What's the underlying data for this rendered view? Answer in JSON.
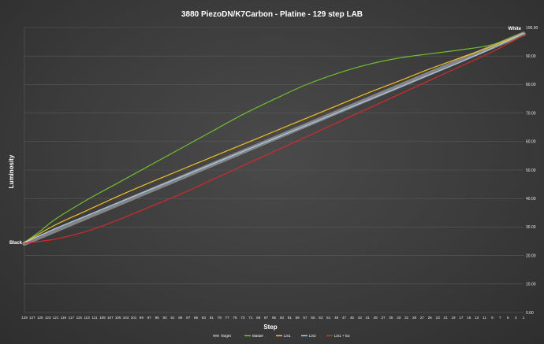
{
  "chart_data": {
    "type": "line",
    "title": "3880 PiezoDN/K7Carbon - Platine - 129 step LAB",
    "xlabel": "Step",
    "ylabel": "Luminosity",
    "ylim": [
      0,
      100
    ],
    "xlim": [
      129,
      1
    ],
    "x_reversed": true,
    "grid": true,
    "legend_position": "bottom",
    "y_ticks": [
      "0.00",
      "10.00",
      "20.00",
      "30.00",
      "40.00",
      "50.00",
      "60.00",
      "70.00",
      "80.00",
      "90.00",
      "100.00"
    ],
    "x_ticks": [
      "129",
      "127",
      "125",
      "123",
      "121",
      "119",
      "117",
      "115",
      "113",
      "111",
      "109",
      "107",
      "105",
      "103",
      "101",
      "99",
      "97",
      "95",
      "93",
      "91",
      "89",
      "87",
      "85",
      "83",
      "81",
      "79",
      "77",
      "75",
      "73",
      "71",
      "69",
      "67",
      "65",
      "63",
      "61",
      "59",
      "57",
      "55",
      "53",
      "51",
      "49",
      "47",
      "45",
      "43",
      "41",
      "39",
      "37",
      "35",
      "33",
      "31",
      "29",
      "27",
      "25",
      "23",
      "21",
      "19",
      "17",
      "15",
      "13",
      "11",
      "9",
      "7",
      "5",
      "3",
      "1"
    ],
    "annotations": [
      {
        "text": "Black",
        "x": 129,
        "y": 24.5
      },
      {
        "text": "White",
        "x": 1,
        "y": 98
      }
    ],
    "series": [
      {
        "name": "Target",
        "color": "#8c8c8c",
        "width": 5.5,
        "x": [
          129,
          1
        ],
        "y": [
          24.2,
          97.8
        ]
      },
      {
        "name": "Master",
        "color": "#6fbf2a",
        "width": 1.2,
        "x": [
          129,
          125,
          121,
          113,
          105,
          97,
          89,
          81,
          73,
          65,
          57,
          49,
          41,
          33,
          25,
          17,
          9,
          1
        ],
        "y": [
          24.6,
          28.5,
          32.8,
          39.5,
          45.5,
          51.5,
          57.5,
          63.5,
          69.5,
          74.8,
          79.8,
          83.8,
          87.0,
          89.3,
          90.8,
          92.2,
          94.0,
          98.0
        ]
      },
      {
        "name": "Lin1",
        "color": "#f0c020",
        "width": 1.2,
        "x": [
          129,
          121,
          113,
          105,
          97,
          89,
          81,
          73,
          65,
          57,
          49,
          41,
          33,
          25,
          17,
          9,
          1
        ],
        "y": [
          24.6,
          30.8,
          35.8,
          40.8,
          45.5,
          50.0,
          54.5,
          59.0,
          63.5,
          68.0,
          72.5,
          77.0,
          81.2,
          85.5,
          89.5,
          93.5,
          98.0
        ]
      },
      {
        "name": "Lin2",
        "color": "#a8c8e8",
        "width": 1.2,
        "x": [
          129,
          121,
          113,
          105,
          97,
          89,
          81,
          73,
          65,
          57,
          49,
          41,
          33,
          25,
          17,
          9,
          1
        ],
        "y": [
          24.5,
          29.5,
          34.0,
          38.5,
          43.0,
          47.5,
          52.0,
          56.5,
          61.0,
          65.5,
          70.0,
          74.5,
          79.0,
          83.5,
          88.0,
          92.8,
          97.9
        ]
      },
      {
        "name": "Lin1 + loc",
        "color": "#d42a2a",
        "width": 1.2,
        "x": [
          129,
          121,
          113,
          105,
          97,
          89,
          81,
          73,
          65,
          57,
          49,
          41,
          33,
          25,
          17,
          9,
          1
        ],
        "y": [
          24.3,
          25.8,
          28.5,
          32.5,
          37.0,
          41.5,
          46.5,
          51.5,
          56.5,
          61.5,
          66.5,
          71.5,
          76.5,
          81.5,
          86.5,
          91.5,
          97.3
        ]
      }
    ]
  }
}
